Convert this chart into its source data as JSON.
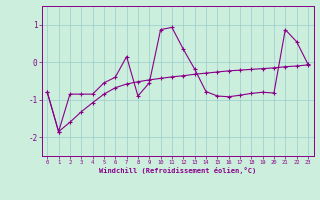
{
  "xlabel": "Windchill (Refroidissement éolien,°C)",
  "x_values": [
    0,
    1,
    2,
    3,
    4,
    5,
    6,
    7,
    8,
    9,
    10,
    11,
    12,
    13,
    14,
    15,
    16,
    17,
    18,
    19,
    20,
    21,
    22,
    23
  ],
  "line1_y": [
    -0.8,
    -1.85,
    -0.85,
    -0.85,
    -0.85,
    -0.55,
    -0.4,
    0.15,
    -0.9,
    -0.55,
    0.87,
    0.93,
    0.35,
    -0.18,
    -0.78,
    -0.9,
    -0.92,
    -0.88,
    -0.83,
    -0.8,
    -0.82,
    0.87,
    0.55,
    -0.05
  ],
  "line2_y": [
    -0.8,
    -1.85,
    -1.6,
    -1.32,
    -1.08,
    -0.85,
    -0.68,
    -0.58,
    -0.52,
    -0.47,
    -0.43,
    -0.39,
    -0.36,
    -0.32,
    -0.29,
    -0.26,
    -0.23,
    -0.21,
    -0.19,
    -0.17,
    -0.15,
    -0.12,
    -0.1,
    -0.07
  ],
  "line_color": "#880088",
  "bg_color": "#cceedd",
  "grid_color": "#99cccc",
  "ylim": [
    -2.5,
    1.5
  ],
  "yticks": [
    -2,
    -1,
    0,
    1
  ],
  "xlim": [
    -0.5,
    23.5
  ],
  "figsize": [
    3.2,
    2.0
  ],
  "dpi": 100
}
